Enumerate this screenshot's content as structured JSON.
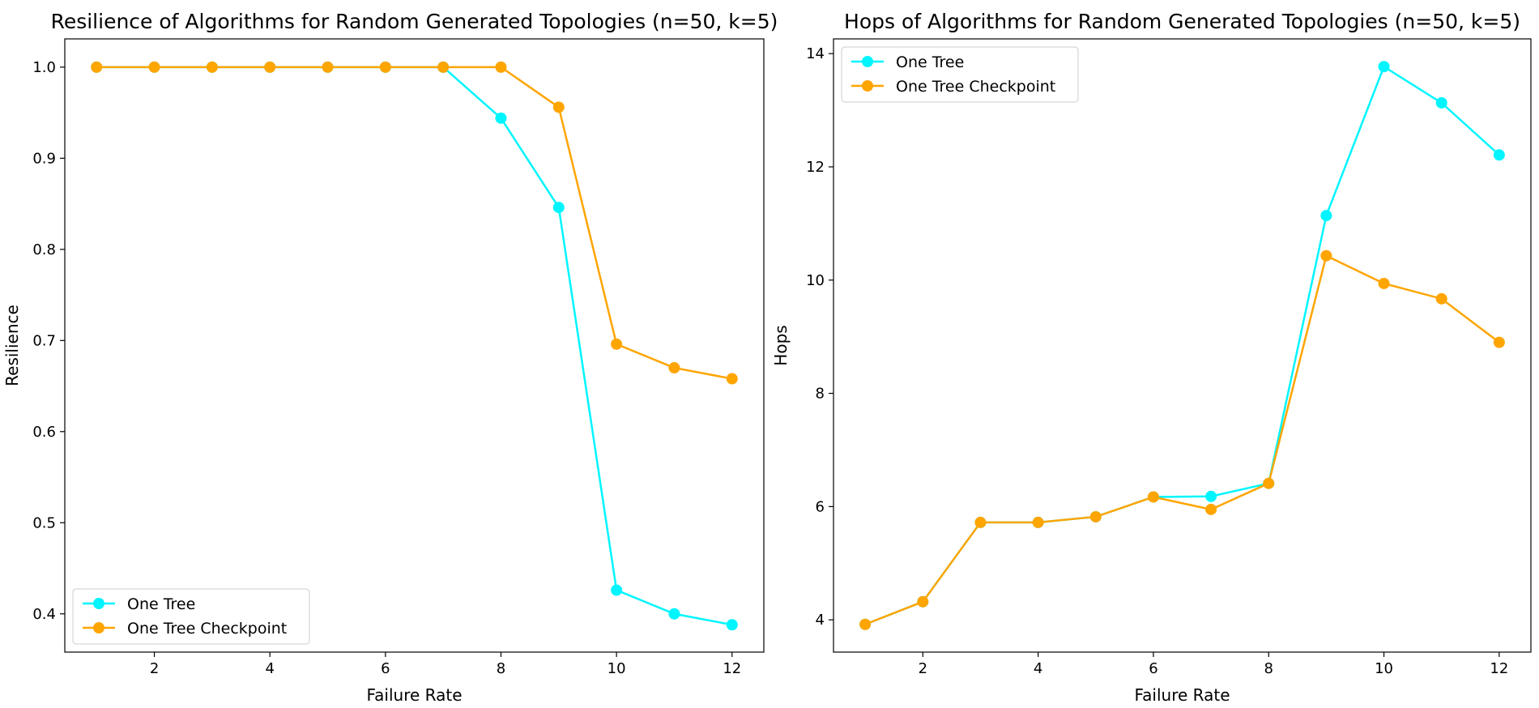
{
  "figure": {
    "series_colors": {
      "One Tree": "#00f5ff",
      "One Tree Checkpoint": "#ffa500"
    }
  },
  "chart_data": [
    {
      "type": "line",
      "title": "Resilience of Algorithms for Random Generated Topologies (n=50, k=5)",
      "xlabel": "Failure Rate",
      "ylabel": "Resilience",
      "xlim": [
        0.45,
        12.55
      ],
      "ylim": [
        0.358,
        1.031
      ],
      "xticks": [
        2,
        4,
        6,
        8,
        10,
        12
      ],
      "yticks": [
        0.4,
        0.5,
        0.6,
        0.7,
        0.8,
        0.9,
        1.0
      ],
      "ytick_labels": [
        "0.4",
        "0.5",
        "0.6",
        "0.7",
        "0.8",
        "0.9",
        "1.0"
      ],
      "grid": false,
      "legend_position": "lower left",
      "x": [
        1,
        2,
        3,
        4,
        5,
        6,
        7,
        8,
        9,
        10,
        11,
        12
      ],
      "series": [
        {
          "name": "One Tree",
          "color": "#00f5ff",
          "marker": "circle",
          "values": [
            1.0,
            1.0,
            1.0,
            1.0,
            1.0,
            1.0,
            1.0,
            0.944,
            0.846,
            0.426,
            0.4,
            0.388
          ]
        },
        {
          "name": "One Tree Checkpoint",
          "color": "#ffa500",
          "marker": "circle",
          "values": [
            1.0,
            1.0,
            1.0,
            1.0,
            1.0,
            1.0,
            1.0,
            1.0,
            0.956,
            0.696,
            0.67,
            0.658
          ]
        }
      ]
    },
    {
      "type": "line",
      "title": "Hops of Algorithms for Random Generated Topologies (n=50, k=5)",
      "xlabel": "Failure Rate",
      "ylabel": "Hops",
      "xlim": [
        0.45,
        12.55
      ],
      "ylim": [
        3.43,
        14.26
      ],
      "xticks": [
        2,
        4,
        6,
        8,
        10,
        12
      ],
      "yticks": [
        4,
        6,
        8,
        10,
        12,
        14
      ],
      "ytick_labels": [
        "4",
        "6",
        "8",
        "10",
        "12",
        "14"
      ],
      "grid": false,
      "legend_position": "upper left",
      "x": [
        1,
        2,
        3,
        4,
        5,
        6,
        7,
        8,
        9,
        10,
        11,
        12
      ],
      "series": [
        {
          "name": "One Tree",
          "color": "#00f5ff",
          "marker": "circle",
          "values": [
            3.92,
            4.32,
            5.72,
            5.72,
            5.82,
            6.17,
            6.18,
            6.41,
            11.14,
            13.77,
            13.13,
            12.21
          ]
        },
        {
          "name": "One Tree Checkpoint",
          "color": "#ffa500",
          "marker": "circle",
          "values": [
            3.92,
            4.32,
            5.72,
            5.72,
            5.82,
            6.17,
            5.95,
            6.41,
            10.43,
            9.94,
            9.67,
            8.9
          ]
        }
      ]
    }
  ]
}
